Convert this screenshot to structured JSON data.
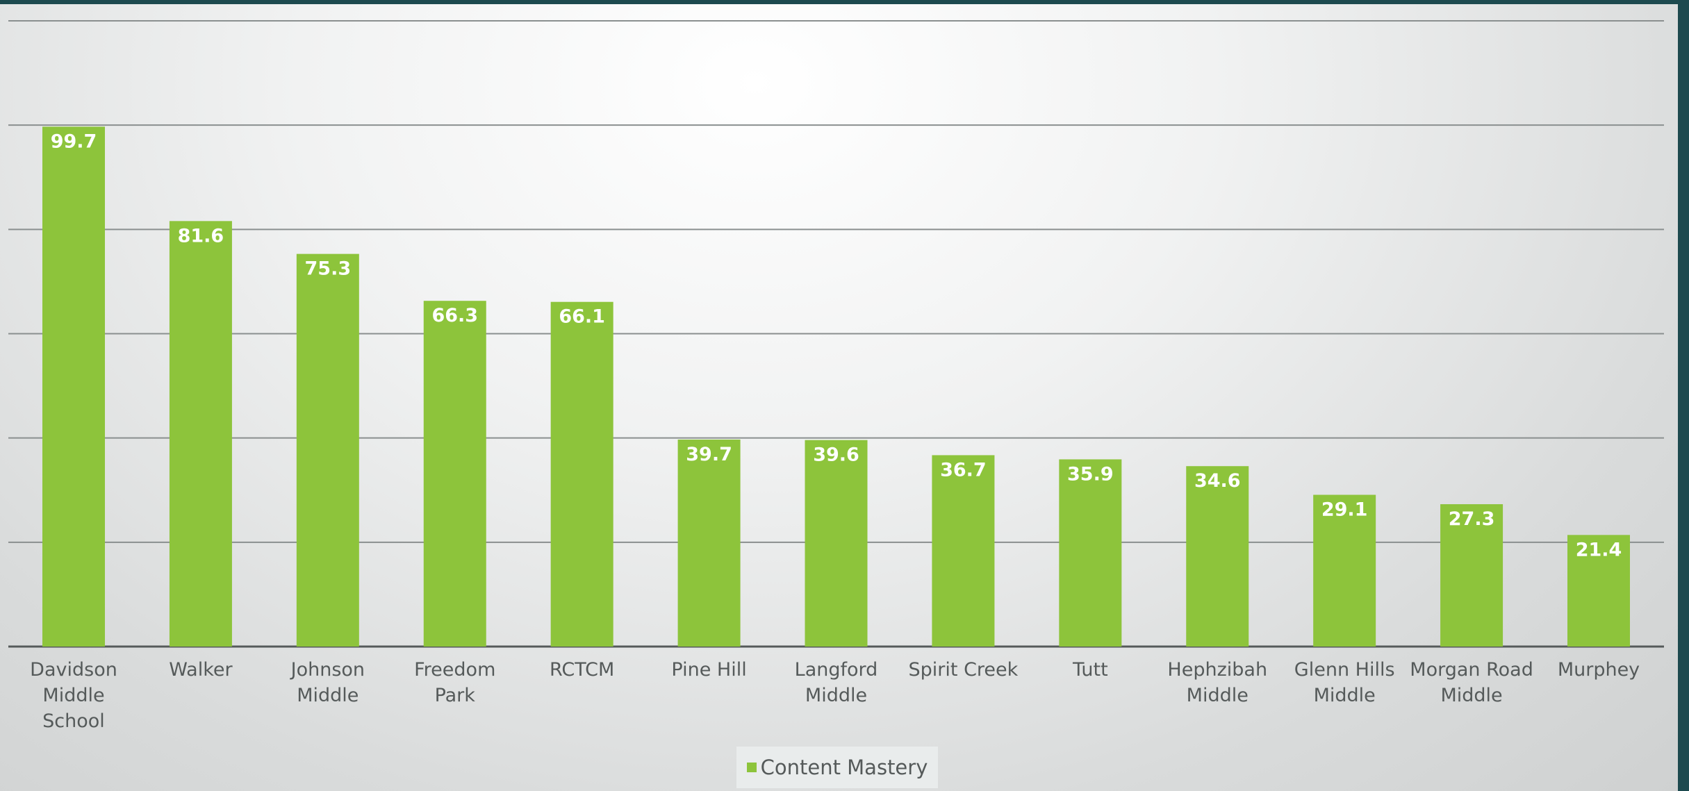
{
  "chart_data": {
    "type": "bar",
    "categories": [
      [
        "Davidson",
        "Middle",
        "School"
      ],
      [
        "Walker"
      ],
      [
        "Johnson",
        "Middle"
      ],
      [
        "Freedom",
        "Park"
      ],
      [
        "RCTCM"
      ],
      [
        "Pine Hill"
      ],
      [
        "Langford",
        "Middle"
      ],
      [
        "Spirit Creek"
      ],
      [
        "Tutt"
      ],
      [
        "Hephzibah",
        "Middle"
      ],
      [
        "Glenn Hills",
        "Middle"
      ],
      [
        "Morgan Road",
        "Middle"
      ],
      [
        "Murphey"
      ]
    ],
    "series": [
      {
        "name": "Content Mastery",
        "color": "#8dc43b",
        "values": [
          99.7,
          81.6,
          75.3,
          66.3,
          66.1,
          39.7,
          39.6,
          36.7,
          35.9,
          34.6,
          29.1,
          27.3,
          21.4
        ]
      }
    ],
    "value_labels": [
      "99.7",
      "81.6",
      "75.3",
      "66.3",
      "66.1",
      "39.7",
      "39.6",
      "36.7",
      "35.9",
      "34.6",
      "29.1",
      "27.3",
      "21.4"
    ],
    "ylim": [
      0,
      120
    ],
    "gridlines": [
      0,
      20,
      40,
      60,
      80,
      100,
      120
    ],
    "grid": true,
    "legend_position": "bottom",
    "title": "",
    "xlabel": "",
    "ylabel": ""
  },
  "legend": {
    "label": "Content Mastery"
  }
}
